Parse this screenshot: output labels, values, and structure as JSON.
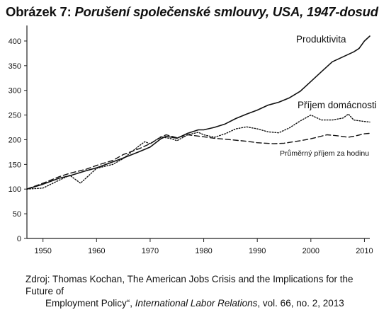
{
  "title": {
    "prefix": "Obrázek 7: ",
    "subtitle": "Porušení společenské smlouvy, USA, 1947-dosud"
  },
  "source": {
    "line1": "Zdroj: Thomas Kochan, The American Jobs Crisis and the Implications for the Future of",
    "line2_start": "Employment Policy“, ",
    "journal": "International Labor Relations",
    "line2_end": ", vol. 66, no. 2, 2013"
  },
  "chart_data": {
    "type": "line",
    "xlim": [
      1947,
      2011
    ],
    "ylim": [
      0,
      420
    ],
    "xticks": [
      1950,
      1960,
      1970,
      1980,
      1990,
      2000,
      2010
    ],
    "yticks": [
      0,
      50,
      100,
      150,
      200,
      250,
      300,
      350,
      400
    ],
    "grid": false,
    "series": [
      {
        "name": "Produktivita",
        "style": "solid",
        "color": "#111111",
        "x": [
          1947,
          1950,
          1953,
          1955,
          1958,
          1960,
          1963,
          1965,
          1968,
          1970,
          1972,
          1973,
          1975,
          1977,
          1979,
          1980,
          1982,
          1984,
          1986,
          1988,
          1990,
          1992,
          1994,
          1996,
          1998,
          2000,
          2002,
          2004,
          2006,
          2008,
          2009,
          2010,
          2011
        ],
        "y": [
          100,
          110,
          122,
          127,
          137,
          143,
          155,
          163,
          176,
          185,
          202,
          207,
          203,
          213,
          220,
          220,
          225,
          232,
          243,
          252,
          260,
          270,
          276,
          285,
          298,
          318,
          338,
          358,
          368,
          378,
          385,
          400,
          410
        ]
      },
      {
        "name": "Příjem domácnosti",
        "style": "dotted",
        "color": "#111111",
        "x": [
          1947,
          1950,
          1953,
          1955,
          1957,
          1960,
          1963,
          1965,
          1968,
          1969,
          1970,
          1972,
          1974,
          1975,
          1977,
          1979,
          1980,
          1982,
          1984,
          1986,
          1988,
          1990,
          1992,
          1994,
          1996,
          1998,
          2000,
          2002,
          2004,
          2006,
          2007,
          2008,
          2010,
          2011
        ],
        "y": [
          100,
          102,
          118,
          128,
          112,
          142,
          150,
          162,
          188,
          196,
          192,
          206,
          202,
          198,
          210,
          215,
          210,
          205,
          212,
          222,
          226,
          222,
          216,
          214,
          224,
          238,
          250,
          240,
          240,
          244,
          252,
          240,
          237,
          236
        ]
      },
      {
        "name": "Průměrný příjem za hodinu",
        "style": "dashed",
        "color": "#111111",
        "x": [
          1947,
          1950,
          1953,
          1955,
          1958,
          1960,
          1963,
          1965,
          1968,
          1970,
          1972,
          1973,
          1975,
          1977,
          1980,
          1982,
          1985,
          1988,
          1990,
          1993,
          1995,
          1998,
          2000,
          2003,
          2005,
          2007,
          2008,
          2010,
          2011
        ],
        "y": [
          100,
          112,
          125,
          132,
          140,
          148,
          158,
          170,
          182,
          192,
          205,
          210,
          204,
          210,
          206,
          203,
          200,
          197,
          194,
          192,
          193,
          198,
          202,
          210,
          208,
          205,
          207,
          212,
          213
        ]
      }
    ]
  }
}
